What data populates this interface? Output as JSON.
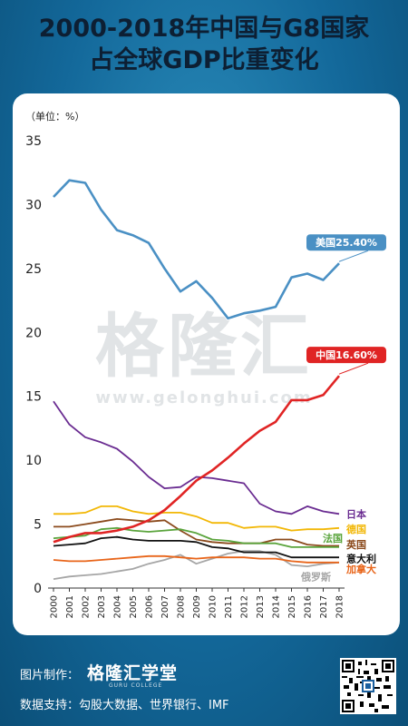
{
  "title_line1": "2000-2018年中国与G8国家",
  "title_line2": "占全球GDP比重变化",
  "unit_label": "（单位：%）",
  "watermark": {
    "main": "格隆汇",
    "sub": "www.gelonghui.com"
  },
  "footer": {
    "maker_label": "图片制作：",
    "brand": "格隆汇学堂",
    "brand_sub": "GURU COLLEGE",
    "source": "数据支持：勾股大数据、世界银行、IMF"
  },
  "colors": {
    "background": "#13689a",
    "us": "#4a90c4",
    "china": "#e02424",
    "japan": "#6a2c91",
    "germany": "#f2b705",
    "france": "#5aa43c",
    "uk": "#8b4a1c",
    "italy": "#111111",
    "canada": "#e8651a",
    "russia": "#a6a6a6"
  },
  "chart_data": {
    "type": "line",
    "title": "2000-2018年中国与G8国家占全球GDP比重变化",
    "ylabel": "（单位：%）",
    "x": [
      "2000",
      "2001",
      "2002",
      "2003",
      "2004",
      "2005",
      "2006",
      "2007",
      "2008",
      "2009",
      "2010",
      "2011",
      "2012",
      "2013",
      "2014",
      "2015",
      "2016",
      "2017",
      "2018"
    ],
    "ylim": [
      0,
      35
    ],
    "yticks": [
      0,
      5,
      10,
      15,
      20,
      25,
      30,
      35
    ],
    "grid": false,
    "series": [
      {
        "name": "美国",
        "color": "#4a90c4",
        "callout": "美国25.40%",
        "values": [
          30.6,
          31.9,
          31.7,
          29.6,
          28.0,
          27.6,
          27.0,
          25.0,
          23.2,
          24.0,
          22.7,
          21.1,
          21.5,
          21.7,
          22.0,
          24.3,
          24.6,
          24.1,
          25.4
        ]
      },
      {
        "name": "中国",
        "color": "#e02424",
        "callout": "中国16.60%",
        "values": [
          3.6,
          4.0,
          4.3,
          4.3,
          4.5,
          4.8,
          5.3,
          6.1,
          7.2,
          8.4,
          9.2,
          10.2,
          11.3,
          12.3,
          13.0,
          14.7,
          14.7,
          15.1,
          16.6
        ]
      },
      {
        "name": "日本",
        "color": "#6a2c91",
        "values": [
          14.6,
          12.8,
          11.8,
          11.4,
          10.9,
          9.9,
          8.7,
          7.8,
          7.9,
          8.7,
          8.6,
          8.4,
          8.2,
          6.6,
          6.0,
          5.8,
          6.4,
          6.0,
          5.8
        ]
      },
      {
        "name": "德国",
        "color": "#f2b705",
        "values": [
          5.8,
          5.8,
          5.9,
          6.4,
          6.4,
          6.0,
          5.8,
          5.9,
          5.9,
          5.6,
          5.1,
          5.1,
          4.7,
          4.8,
          4.8,
          4.5,
          4.6,
          4.6,
          4.7
        ]
      },
      {
        "name": "法国",
        "color": "#5aa43c",
        "values": [
          3.9,
          4.0,
          4.1,
          4.6,
          4.7,
          4.5,
          4.4,
          4.5,
          4.6,
          4.3,
          3.8,
          3.7,
          3.5,
          3.5,
          3.5,
          3.2,
          3.2,
          3.2,
          3.2
        ]
      },
      {
        "name": "英国",
        "color": "#8b4a1c",
        "values": [
          4.8,
          4.8,
          5.0,
          5.2,
          5.4,
          5.3,
          5.2,
          5.3,
          4.5,
          3.8,
          3.6,
          3.5,
          3.5,
          3.5,
          3.8,
          3.8,
          3.4,
          3.3,
          3.3
        ]
      },
      {
        "name": "意大利",
        "color": "#111111",
        "values": [
          3.3,
          3.4,
          3.5,
          3.9,
          4.0,
          3.8,
          3.7,
          3.7,
          3.7,
          3.6,
          3.2,
          3.1,
          2.8,
          2.8,
          2.8,
          2.4,
          2.4,
          2.4,
          2.4
        ]
      },
      {
        "name": "加拿大",
        "color": "#e8651a",
        "values": [
          2.2,
          2.1,
          2.1,
          2.2,
          2.3,
          2.4,
          2.5,
          2.5,
          2.4,
          2.3,
          2.4,
          2.4,
          2.4,
          2.3,
          2.3,
          2.1,
          2.0,
          2.0,
          2.0
        ]
      },
      {
        "name": "俄罗斯",
        "color": "#a6a6a6",
        "values": [
          0.7,
          0.9,
          1.0,
          1.1,
          1.3,
          1.5,
          1.9,
          2.2,
          2.6,
          1.9,
          2.3,
          2.7,
          2.9,
          2.9,
          2.6,
          1.8,
          1.7,
          1.9,
          2.0
        ]
      }
    ]
  }
}
